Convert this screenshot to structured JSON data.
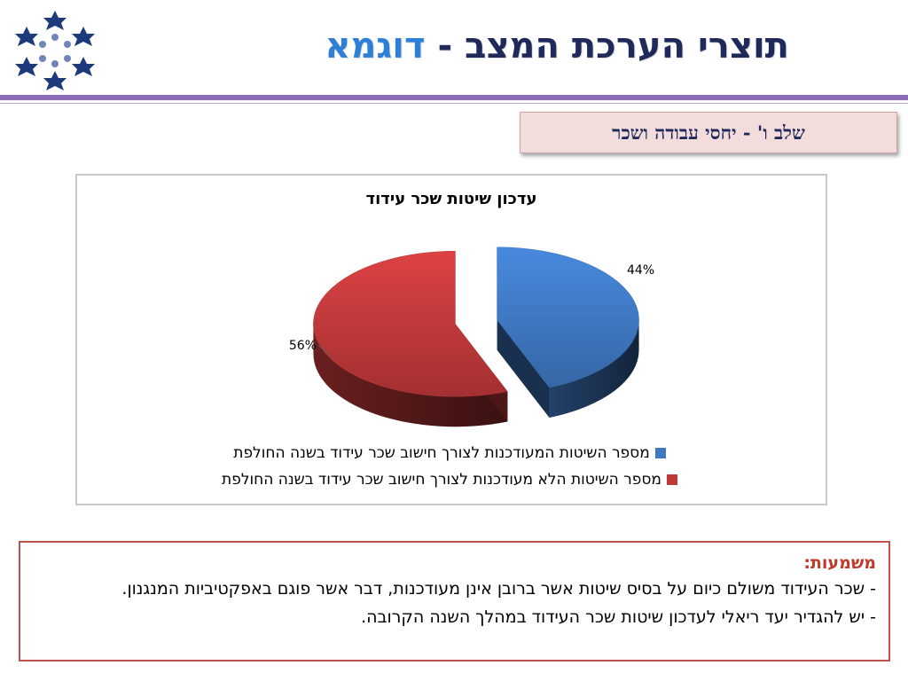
{
  "header": {
    "title_main": "תוצרי הערכת המצב - ",
    "title_accent": "דוגמא"
  },
  "stage_label": "שלב ו' - יחסי עבודה ושכר",
  "colors": {
    "title": "#1f2a5a",
    "title_accent": "#2e7fd6",
    "rule": "#8a6cb6",
    "slice_updated": "#3f78c2",
    "slice_not_updated": "#c0393a",
    "meaning_heading": "#c0392b",
    "meaning_border": "#c0504d"
  },
  "chart_data": {
    "type": "pie",
    "title": "עדכון שיטות שכר עידוד",
    "style": "3d-exploded",
    "legend_position": "bottom",
    "slices": [
      {
        "name": "מספר השיטות המעודכנות לצורך חישוב שכר עידוד בשנה החולפת",
        "value": 44,
        "label": "44%",
        "color": "#3f78c2"
      },
      {
        "name": "מספר השיטות הלא מעודכנות לצורך חישוב שכר עידוד בשנה החולפת",
        "value": 56,
        "label": "56%",
        "color": "#c0393a"
      }
    ]
  },
  "meaning": {
    "heading": "משמעות:",
    "line1": "- שכר העידוד משולם כיום על בסיס שיטות אשר ברובן אינן מעודכנות, דבר אשר פוגם באפקטיביות המנגנון.",
    "line2": "- יש להגדיר יעד ריאלי לעדכון שיטות שכר העידוד במהלך השנה הקרובה."
  }
}
